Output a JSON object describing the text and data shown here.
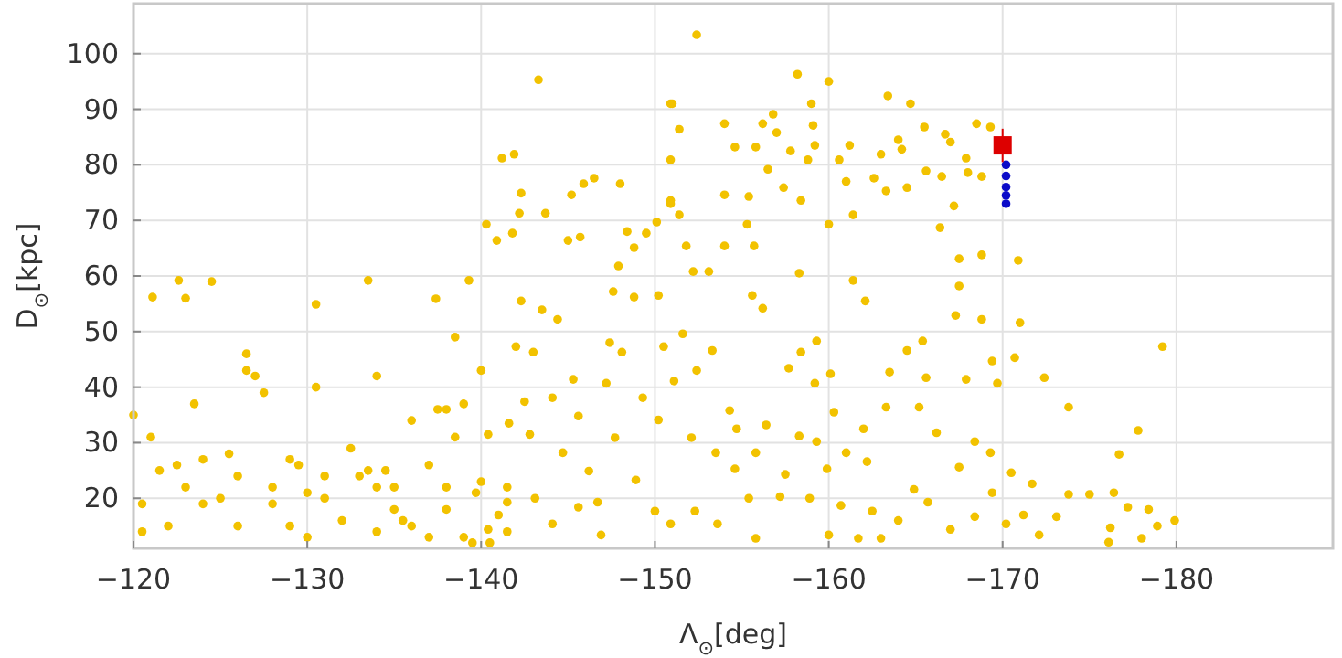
{
  "chart_data": {
    "type": "scatter",
    "xlabel": "Λ$_{⊙}$[deg]",
    "ylabel": "D$_{⊙}$[kpc]",
    "xlim": [
      -120,
      -189
    ],
    "ylim": [
      11,
      109
    ],
    "xticks": [
      {
        "value": -120,
        "label": "−120"
      },
      {
        "value": -130,
        "label": "−130"
      },
      {
        "value": -140,
        "label": "−140"
      },
      {
        "value": -150,
        "label": "−150"
      },
      {
        "value": -160,
        "label": "−160"
      },
      {
        "value": -170,
        "label": "−170"
      },
      {
        "value": -180,
        "label": "−180"
      }
    ],
    "yticks": [
      20,
      30,
      40,
      50,
      60,
      70,
      80,
      90,
      100
    ],
    "grid": true,
    "series": [
      {
        "color": "#f2c200",
        "marker": "circle",
        "x": [
          -120,
          -120.5,
          -120.5,
          -121,
          -121.5,
          -122,
          -122.5,
          -123,
          -123,
          -123.5,
          -124,
          -124,
          -124.5,
          -125,
          -125.5,
          -126,
          -126,
          -126.5,
          -126.5,
          -127,
          -127.5,
          -128,
          -128,
          -129,
          -129,
          -129.5,
          -130,
          -130,
          -130.5,
          -131,
          -131,
          -132,
          -132.5,
          -133,
          -133.5,
          -134,
          -134,
          -134.5,
          -134,
          -135,
          -135,
          -135.5,
          -136,
          -136,
          -137,
          -137,
          -137.5,
          -138,
          -138,
          -138,
          -138.5,
          -138.5,
          -139,
          -139,
          -139.5,
          -140,
          -140,
          -140.5,
          -141,
          -141.5,
          -141.5,
          -121.1,
          -122.6,
          -130.5,
          -133.5,
          -137.4,
          -139.3,
          -140.3,
          -140.9,
          -141.2,
          -141.9,
          -141.8,
          -142.3,
          -142.2,
          -143.3,
          -143.7,
          -145,
          -145.2,
          -145.7,
          -145.9,
          -146.5,
          -148,
          -147.9,
          -148.4,
          -148.8,
          -149.5,
          -150.1,
          -150.9,
          -150.9,
          -147.6,
          -148.8,
          -150.2,
          -152.4,
          -151,
          -151.4,
          -150.9,
          -150.9,
          -151.4,
          -151.8,
          -152.2,
          -153.1,
          -154,
          -154.6,
          -154,
          -154,
          -155.3,
          -155.7,
          -155.8,
          -156.2,
          -156.8,
          -156.5,
          -155.4,
          -157,
          -157.4,
          -157.8,
          -158.2,
          -158.4,
          -158.3,
          -158.8,
          -159,
          -159.1,
          -159.2,
          -160,
          -160,
          -160.6,
          -161,
          -161.2,
          -161.4,
          -161.4,
          -162.1,
          -162.6,
          -163,
          -163.4,
          -163.3,
          -164,
          -164.2,
          -164.5,
          -164.7,
          -165.5,
          -165.6,
          -166.4,
          -166.5,
          -166.7,
          -167,
          -167.2,
          -167.5,
          -167.5,
          -167.9,
          -168,
          -168.5,
          -168.8,
          -168.8,
          -169.3,
          -170.9,
          -155.6,
          -156.2,
          -167.3,
          -168.8,
          -171,
          -179.2,
          -170.7,
          -169.4,
          -172.4,
          -169.7,
          -167.9,
          -173.8,
          -177.8,
          -176.7,
          -169.3,
          -168.4,
          -167.5,
          -170.5,
          -171.7,
          -173.8,
          -175,
          -176.4,
          -177.2,
          -178.4,
          -179.9,
          -178.9,
          -178,
          -176.2,
          -176.1,
          -173.1,
          -172.1,
          -171.2,
          -170.2,
          -168.4,
          -169.4,
          -167,
          -165.7,
          -164.9,
          -164,
          -166.2,
          -165.2,
          -165.6,
          -164.5,
          -165.4,
          -163.5,
          -163.3,
          -162,
          -162.2,
          -161,
          -160.3,
          -160.1,
          -159.2,
          -159.3,
          -159.3,
          -158.4,
          -157.7,
          -158.3,
          -156.4,
          -155.8,
          -154.7,
          -154.3,
          -153.3,
          -152.4,
          -151.1,
          -151.6,
          -150.5,
          -152.1,
          -153.5,
          -154.6,
          -157.5,
          -159.9,
          -160.7,
          -158.9,
          -157.2,
          -155.4,
          -153.6,
          -152.3,
          -150.9,
          -155.8,
          -160,
          -162.5,
          -163,
          -161.7,
          -139.7,
          -140.4,
          -141.5,
          -142.5,
          -142.8,
          -143.1,
          -144.1,
          -144.1,
          -144.7,
          -145.3,
          -146.2,
          -146.7,
          -146.9,
          -147.2,
          -147.7,
          -148.1,
          -148.9,
          -149.3,
          -150,
          -150.2,
          -145.6,
          -147.4,
          -142,
          -143,
          -140.4,
          -141.6,
          -144.4,
          -143.5,
          -142.3,
          -145.6
        ],
        "values": [
          35,
          19,
          14,
          31,
          25,
          15,
          26,
          56,
          22,
          37,
          19,
          27,
          59,
          20,
          28,
          24,
          15,
          46,
          43,
          42,
          39,
          19,
          22,
          27,
          15,
          26,
          13,
          21,
          40,
          24,
          20,
          16,
          29,
          24,
          25,
          14,
          22,
          25,
          42,
          22,
          18,
          16,
          34,
          15,
          26,
          13,
          36,
          36,
          22,
          18,
          31,
          49,
          13,
          37,
          12,
          23,
          43,
          12,
          17,
          14,
          22,
          56.2,
          59.2,
          54.9,
          59.2,
          55.9,
          59.2,
          69.3,
          66.4,
          81.2,
          81.9,
          67.7,
          74.9,
          71.3,
          95.3,
          71.3,
          66.4,
          74.6,
          67,
          76.6,
          77.6,
          76.6,
          61.8,
          68,
          65.1,
          67.7,
          69.7,
          91,
          73,
          57.2,
          56.2,
          56.5,
          103.4,
          91,
          86.4,
          80.9,
          73.6,
          71,
          65.4,
          60.8,
          60.8,
          87.4,
          83.2,
          74.6,
          65.4,
          69.3,
          65.4,
          83.2,
          87.4,
          89.1,
          79.2,
          74.3,
          85.8,
          75.9,
          82.5,
          96.3,
          73.6,
          60.5,
          80.9,
          91,
          87.1,
          83.5,
          95,
          69.3,
          80.9,
          77,
          83.5,
          71,
          59.2,
          55.5,
          77.6,
          81.9,
          92.4,
          75.3,
          84.5,
          82.8,
          75.9,
          91,
          86.8,
          78.9,
          68.7,
          77.9,
          85.5,
          84.1,
          72.6,
          63.1,
          58.2,
          81.2,
          78.6,
          87.4,
          77.9,
          63.8,
          86.8,
          62.8,
          56.5,
          54.2,
          52.9,
          52.2,
          51.6,
          47.3,
          45.3,
          44.7,
          41.7,
          40.7,
          41.4,
          36.4,
          32.2,
          27.9,
          28.2,
          30.2,
          25.6,
          24.6,
          22.6,
          20.7,
          20.7,
          21,
          18.4,
          18,
          16,
          15,
          12.8,
          14.7,
          12.1,
          16.7,
          13.4,
          17,
          15.4,
          16.7,
          21,
          14.4,
          19.3,
          21.6,
          16,
          31.8,
          36.4,
          41.7,
          46.6,
          48.3,
          42.7,
          36.4,
          32.5,
          26.6,
          28.2,
          35.5,
          42.4,
          40.7,
          30.2,
          48.3,
          46.3,
          43.4,
          31.2,
          33.2,
          28.2,
          32.5,
          35.8,
          46.6,
          43,
          41.1,
          49.6,
          47.3,
          30.9,
          28.2,
          25.3,
          24.3,
          25.3,
          18.7,
          20,
          20.3,
          20,
          15.4,
          17.7,
          15.4,
          12.8,
          13.4,
          17.7,
          12.8,
          12.8,
          21,
          14.4,
          19.3,
          37.4,
          31.5,
          20,
          15.4,
          38.1,
          28.2,
          41.4,
          24.9,
          19.3,
          13.4,
          40.7,
          30.9,
          46.3,
          23.3,
          38.1,
          17.7,
          34.1,
          34.8,
          48,
          47.3,
          46.3,
          31.5,
          33.5,
          52.2,
          53.9,
          55.5,
          18.4
        ]
      },
      {
        "color": "#0a0ac8",
        "marker": "circle",
        "x": [
          -170.2,
          -170.2,
          -170.2,
          -170.2,
          -170.2
        ],
        "values": [
          80,
          78,
          76,
          74.5,
          73
        ]
      },
      {
        "color": "#dd0000",
        "marker": "square",
        "x": [
          -170
        ],
        "values": [
          83.5
        ],
        "errors": [
          3
        ]
      }
    ]
  }
}
